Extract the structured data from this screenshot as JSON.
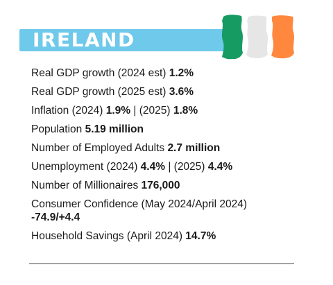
{
  "title": "IRELAND",
  "colors": {
    "banner": "#6ec9ea",
    "flag_green": "#169b62",
    "flag_white": "#e6e6e6",
    "flag_orange": "#ff883e"
  },
  "stats": [
    {
      "label": "Real GDP growth (2024 est)",
      "value": "1.2%"
    },
    {
      "label": "Real GDP growth (2025 est)",
      "value": "3.6%"
    },
    {
      "label": "Inflation (2024)",
      "value": "1.9%",
      "sep": " | (2025) ",
      "value2": "1.8%"
    },
    {
      "label": "Population",
      "value": "5.19 million"
    },
    {
      "label": "Number of Employed Adults",
      "value": "2.7 million"
    },
    {
      "label": "Unemployment (2024)",
      "value": "4.4%",
      "sep": " | (2025) ",
      "value2": "4.4%"
    },
    {
      "label": "Number of Millionaires",
      "value": "176,000"
    },
    {
      "label": "Consumer Confidence (May 2024/April 2024)",
      "value": "-74.9/+4.4"
    },
    {
      "label": "Household Savings (April 2024)",
      "value": "14.7%"
    }
  ]
}
